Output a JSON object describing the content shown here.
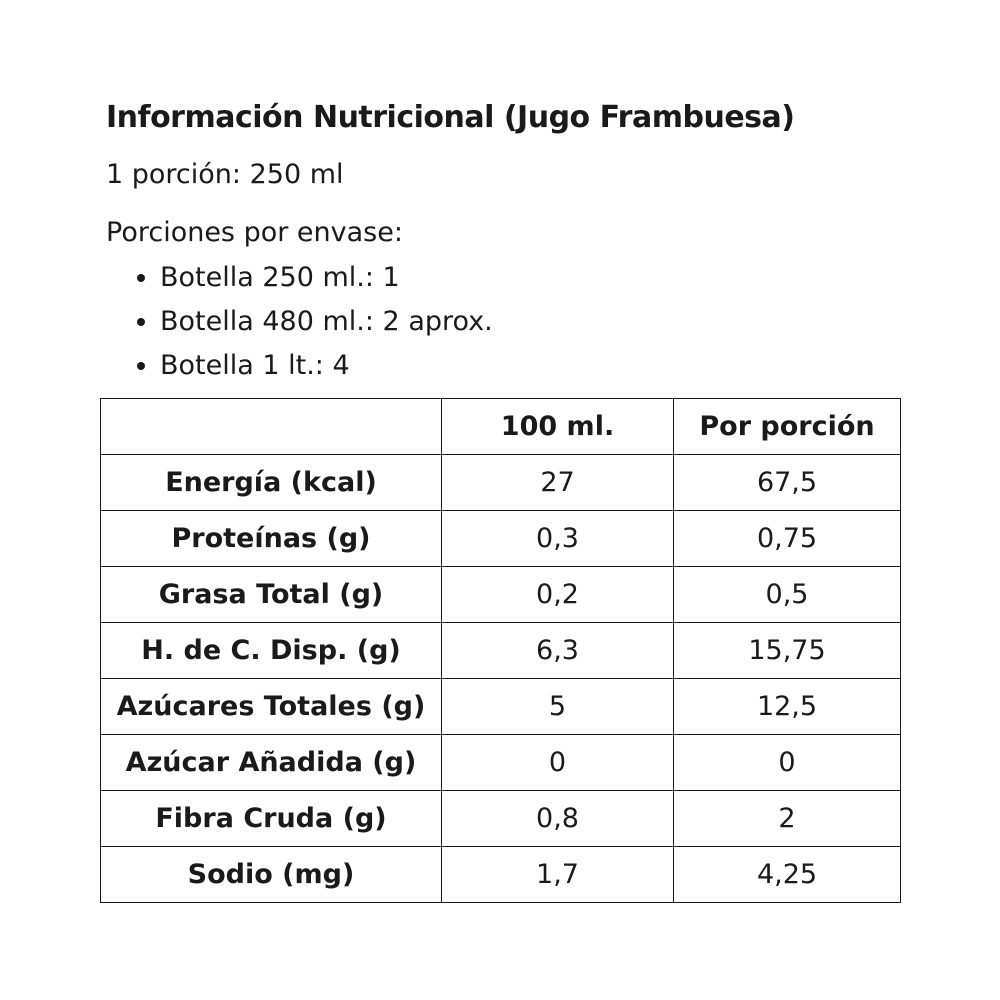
{
  "title": "Información Nutricional (Jugo Frambuesa)",
  "serving": "1 porción: 250 ml",
  "portions_label": "Porciones por envase:",
  "portions": [
    "Botella 250 ml.: 1",
    "Botella 480 ml.: 2 aprox.",
    "Botella 1 lt.: 4"
  ],
  "table": {
    "headers": [
      "",
      "100 ml.",
      "Por porción"
    ],
    "rows": [
      {
        "label": "Energía (kcal)",
        "per100": "27",
        "per_portion": "67,5"
      },
      {
        "label": "Proteínas (g)",
        "per100": "0,3",
        "per_portion": "0,75"
      },
      {
        "label": "Grasa Total (g)",
        "per100": "0,2",
        "per_portion": "0,5"
      },
      {
        "label": "H. de C. Disp. (g)",
        "per100": "6,3",
        "per_portion": "15,75"
      },
      {
        "label": "Azúcares Totales (g)",
        "per100": "5",
        "per_portion": "12,5"
      },
      {
        "label": "Azúcar Añadida (g)",
        "per100": "0",
        "per_portion": "0"
      },
      {
        "label": "Fibra Cruda (g)",
        "per100": "0,8",
        "per_portion": "2"
      },
      {
        "label": "Sodio (mg)",
        "per100": "1,7",
        "per_portion": "4,25"
      }
    ]
  },
  "colors": {
    "text": "#1a1a1a",
    "background": "#ffffff",
    "border": "#1a1a1a"
  }
}
